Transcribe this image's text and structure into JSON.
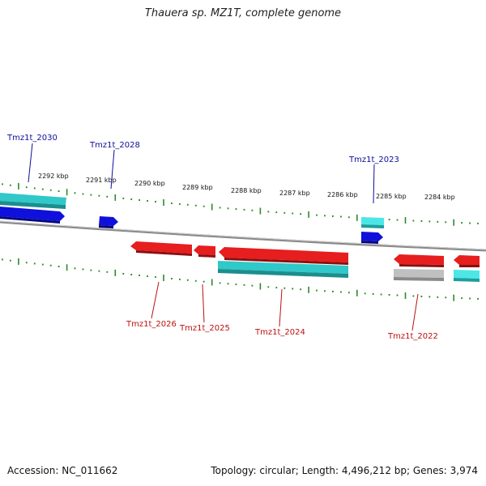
{
  "title": "Thauera sp. MZ1T, complete genome",
  "footer": {
    "accession": "Accession: NC_011662",
    "summary": "Topology: circular; Length: 4,496,212 bp; Genes: 3,974"
  },
  "colors": {
    "forward_cds": "#1010dd",
    "forward_gene": "#30c8c8",
    "reverse_cds": "#e61e1e",
    "reverse_gene": "#30c8c8",
    "pseudo_gene": "#c0c0c0",
    "forward_label": "#0d0d99",
    "reverse_label": "#bb1111",
    "tick": "#2a8a2a",
    "backbone": "#8a8a8a"
  },
  "ruler_labels": [
    "2292 kbp",
    "2291 kbp",
    "2290 kbp",
    "2289 kbp",
    "2288 kbp",
    "2287 kbp",
    "2286 kbp",
    "2285 kbp",
    "2284 kbp"
  ],
  "gene_labels": {
    "forward": [
      "Tmz1t_2030",
      "Tmz1t_2028",
      "Tmz1t_2023"
    ],
    "reverse": [
      "Tmz1t_2026",
      "Tmz1t_2025",
      "Tmz1t_2024",
      "Tmz1t_2022"
    ]
  }
}
